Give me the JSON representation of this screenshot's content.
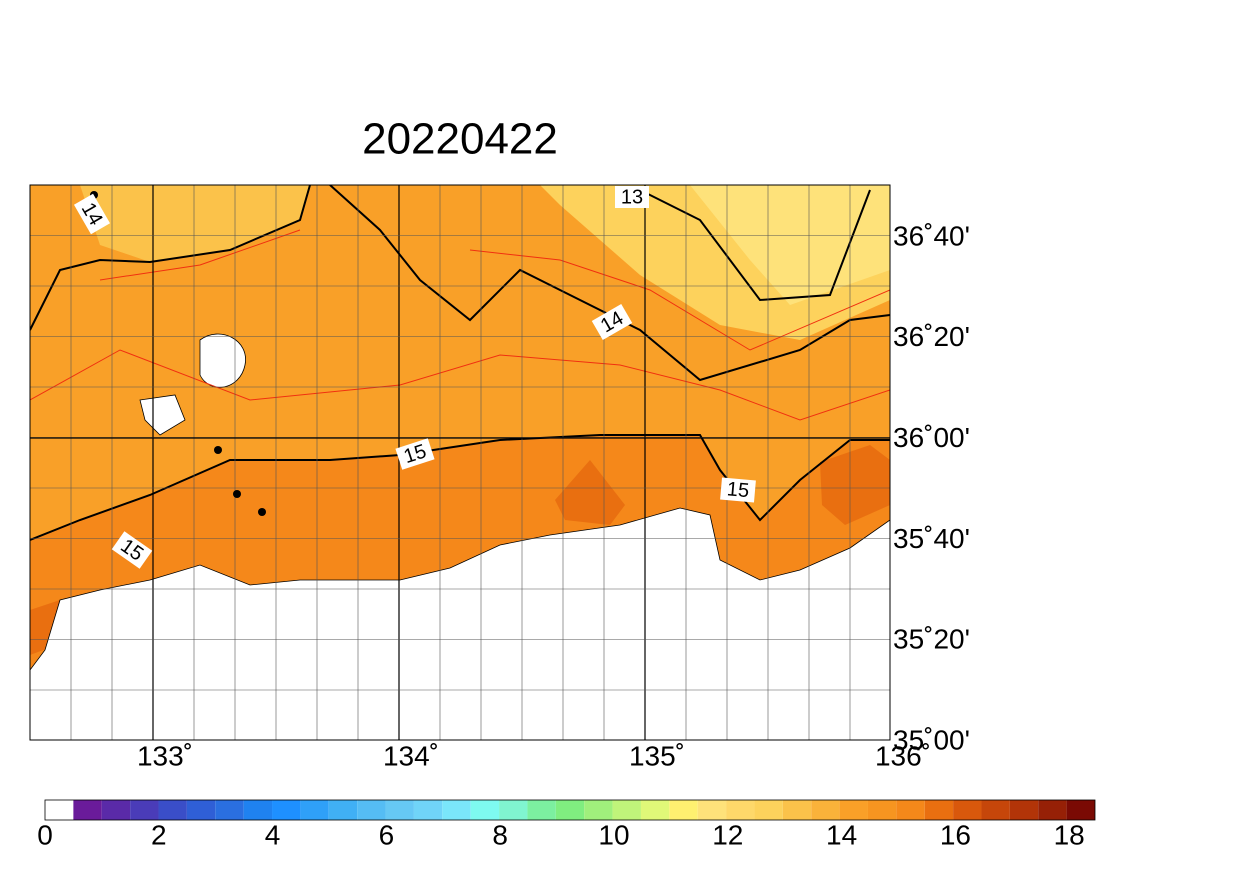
{
  "title": "20220422",
  "lon_labels": [
    "133˚",
    "134˚",
    "135˚",
    "136˚"
  ],
  "lat_labels": [
    "36˚40'",
    "36˚20'",
    "36˚00'",
    "35˚40'",
    "35˚20'",
    "35˚00'"
  ],
  "contour_labels": [
    "14",
    "13",
    "14",
    "15",
    "15",
    "15"
  ],
  "colorbar": {
    "labels": [
      "0",
      "2",
      "4",
      "6",
      "8",
      "10",
      "12",
      "14",
      "16",
      "18"
    ],
    "colors": [
      "#ffffff",
      "#6a1b9a",
      "#5a2aa8",
      "#4a3cb8",
      "#3a4ec8",
      "#2f5fd6",
      "#2a6fe0",
      "#1f82f0",
      "#1e90ff",
      "#2fa0f8",
      "#40b0f5",
      "#55bdf5",
      "#66c8f5",
      "#70d4f8",
      "#7ae6fa",
      "#7efaf0",
      "#80f5d0",
      "#7cf0a0",
      "#80ee80",
      "#a0f07c",
      "#c0f47a",
      "#e0f878",
      "#fff070",
      "#fee27a",
      "#fed86a",
      "#fdd25c",
      "#fbc24a",
      "#f9b23a",
      "#f9a028",
      "#f79520",
      "#f5881a",
      "#e96f10",
      "#d9580c",
      "#c6460a",
      "#b23408",
      "#962006",
      "#7a0a04"
    ]
  }
}
